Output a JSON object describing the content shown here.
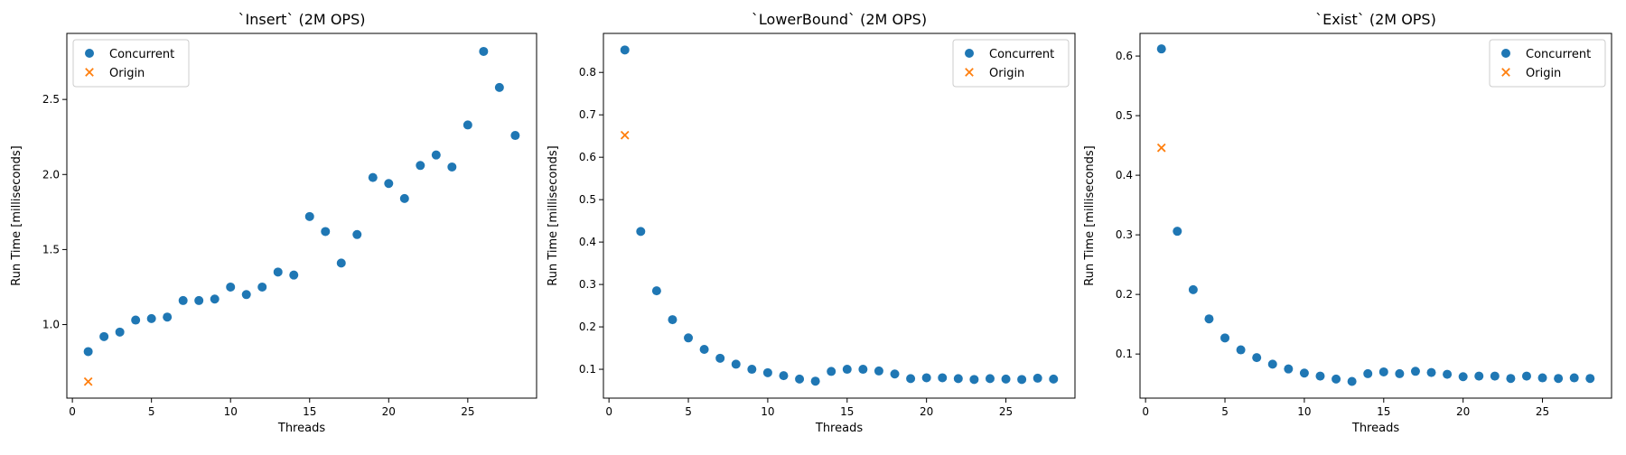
{
  "colors": {
    "concurrent": "#1f77b4",
    "origin": "#ff7f0e",
    "axis": "#000000",
    "legend_border": "#cccccc"
  },
  "chart_data": [
    {
      "type": "scatter",
      "title": "`Insert` (2M OPS)",
      "xlabel": "Threads",
      "ylabel": "Run Time [milliseconds]",
      "xlim": [
        -0.35,
        29.35
      ],
      "ylim": [
        0.51,
        2.94
      ],
      "xticks": [
        0,
        5,
        10,
        15,
        20,
        25
      ],
      "yticks": [
        1.0,
        1.5,
        2.0,
        2.5
      ],
      "ytick_labels": [
        "1.0",
        "1.5",
        "2.0",
        "2.5"
      ],
      "legend_position": "upper left",
      "series": [
        {
          "name": "Concurrent",
          "marker": "circle",
          "x": [
            1,
            2,
            3,
            4,
            5,
            6,
            7,
            8,
            9,
            10,
            11,
            12,
            13,
            14,
            15,
            16,
            17,
            18,
            19,
            20,
            21,
            22,
            23,
            24,
            25,
            26,
            27,
            28
          ],
          "y": [
            0.82,
            0.92,
            0.95,
            1.03,
            1.04,
            1.05,
            1.16,
            1.16,
            1.17,
            1.25,
            1.2,
            1.25,
            1.35,
            1.33,
            1.72,
            1.62,
            1.41,
            1.6,
            1.98,
            1.94,
            1.84,
            2.06,
            2.13,
            2.05,
            2.33,
            2.82,
            2.58,
            2.26
          ]
        },
        {
          "name": "Origin",
          "marker": "x",
          "x": [
            1
          ],
          "y": [
            0.62
          ]
        }
      ]
    },
    {
      "type": "scatter",
      "title": "`LowerBound` (2M OPS)",
      "xlabel": "Threads",
      "ylabel": "Run Time [milliseconds]",
      "xlim": [
        -0.35,
        29.35
      ],
      "ylim": [
        0.032,
        0.892
      ],
      "xticks": [
        0,
        5,
        10,
        15,
        20,
        25
      ],
      "yticks": [
        0.1,
        0.2,
        0.3,
        0.4,
        0.5,
        0.6,
        0.7,
        0.8
      ],
      "ytick_labels": [
        "0.1",
        "0.2",
        "0.3",
        "0.4",
        "0.5",
        "0.6",
        "0.7",
        "0.8"
      ],
      "legend_position": "upper right",
      "series": [
        {
          "name": "Concurrent",
          "marker": "circle",
          "x": [
            1,
            2,
            3,
            4,
            5,
            6,
            7,
            8,
            9,
            10,
            11,
            12,
            13,
            14,
            15,
            16,
            17,
            18,
            19,
            20,
            21,
            22,
            23,
            24,
            25,
            26,
            27,
            28
          ],
          "y": [
            0.853,
            0.425,
            0.285,
            0.217,
            0.174,
            0.147,
            0.126,
            0.112,
            0.1,
            0.092,
            0.085,
            0.077,
            0.072,
            0.095,
            0.1,
            0.1,
            0.096,
            0.089,
            0.078,
            0.08,
            0.08,
            0.078,
            0.076,
            0.078,
            0.077,
            0.076,
            0.079,
            0.077
          ]
        },
        {
          "name": "Origin",
          "marker": "x",
          "x": [
            1
          ],
          "y": [
            0.652
          ]
        }
      ]
    },
    {
      "type": "scatter",
      "title": "`Exist` (2M OPS)",
      "xlabel": "Threads",
      "ylabel": "Run Time [milliseconds]",
      "xlim": [
        -0.35,
        29.35
      ],
      "ylim": [
        0.026,
        0.638
      ],
      "xticks": [
        0,
        5,
        10,
        15,
        20,
        25
      ],
      "yticks": [
        0.1,
        0.2,
        0.3,
        0.4,
        0.5,
        0.6
      ],
      "ytick_labels": [
        "0.1",
        "0.2",
        "0.3",
        "0.4",
        "0.5",
        "0.6"
      ],
      "legend_position": "upper right",
      "series": [
        {
          "name": "Concurrent",
          "marker": "circle",
          "x": [
            1,
            2,
            3,
            4,
            5,
            6,
            7,
            8,
            9,
            10,
            11,
            12,
            13,
            14,
            15,
            16,
            17,
            18,
            19,
            20,
            21,
            22,
            23,
            24,
            25,
            26,
            27,
            28
          ],
          "y": [
            0.612,
            0.306,
            0.208,
            0.159,
            0.127,
            0.107,
            0.094,
            0.083,
            0.075,
            0.068,
            0.063,
            0.058,
            0.054,
            0.067,
            0.07,
            0.067,
            0.071,
            0.069,
            0.066,
            0.062,
            0.063,
            0.063,
            0.059,
            0.063,
            0.06,
            0.059,
            0.06,
            0.059
          ]
        },
        {
          "name": "Origin",
          "marker": "x",
          "x": [
            1
          ],
          "y": [
            0.446
          ]
        }
      ]
    }
  ]
}
